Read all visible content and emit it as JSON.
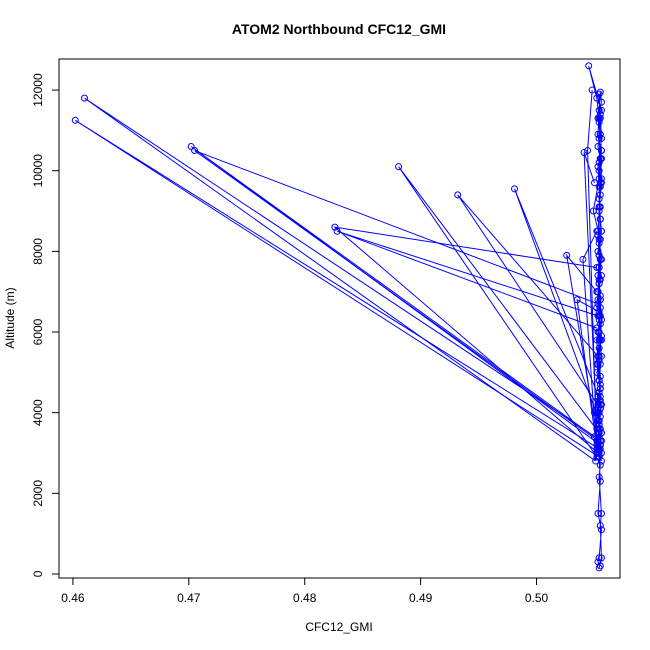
{
  "chart_data": {
    "type": "line",
    "title": "ATOM2 Northbound CFC12_GMI",
    "xlabel": "CFC12_GMI",
    "ylabel": "Altitude (m)",
    "xlim": [
      0.4588,
      0.5072
    ],
    "ylim": [
      -100,
      12770
    ],
    "xticks": [
      0.46,
      0.47,
      0.48,
      0.49,
      0.5
    ],
    "xtick_labels": [
      "0.46",
      "0.47",
      "0.48",
      "0.49",
      "0.50"
    ],
    "yticks": [
      0,
      2000,
      4000,
      6000,
      8000,
      10000,
      12000
    ],
    "ytick_labels": [
      "0",
      "2000",
      "4000",
      "6000",
      "8000",
      "10000",
      "12000"
    ],
    "grid": false,
    "legend": "none",
    "color": "#0000ff",
    "series": [
      {
        "x": [
          0.5055,
          0.5053,
          0.5054,
          0.5056,
          0.5053,
          0.5055,
          0.5054,
          0.5056,
          0.5053,
          0.5055,
          0.5052,
          0.5054,
          0.5053,
          0.5055,
          0.5054,
          0.5053,
          0.5055,
          0.5054,
          0.5053,
          0.5056,
          0.5054,
          0.5053,
          0.5055,
          0.5054,
          0.5052,
          0.5055,
          0.5053,
          0.5054,
          0.5056,
          0.5053,
          0.5055,
          0.5054,
          0.5052,
          0.5055,
          0.5053,
          0.5054,
          0.5056,
          0.5054,
          0.5055,
          0.5053,
          0.5054,
          0.5056,
          0.5055,
          0.5054,
          0.5055,
          0.5056,
          0.5054,
          0.5055,
          0.5053,
          0.5055,
          0.5054,
          0.5056,
          0.5045,
          0.5052,
          0.5054,
          0.5056,
          0.5054,
          0.5049,
          0.5055,
          0.5054,
          0.5053,
          0.5055,
          0.5052,
          0.5053,
          0.5055,
          0.505,
          0.5056,
          0.5053,
          0.5052,
          0.5055,
          0.5053,
          0.5055,
          0.5054,
          0.5053,
          0.5055,
          0.5052,
          0.5054,
          0.5054,
          0.5053,
          0.5055,
          0.5054,
          0.5053,
          0.5055,
          0.5054,
          0.5053,
          0.5056,
          0.5055,
          0.5053,
          0.5056,
          0.5055,
          0.5054,
          0.5053,
          0.5056,
          0.5055,
          0.5054,
          0.5056,
          0.5054,
          0.5053,
          0.5055,
          0.5054,
          0.5056,
          0.5054,
          0.5055,
          0.5054,
          0.5055,
          0.5054,
          0.5056,
          0.5055,
          0.5053,
          0.5054,
          0.5056,
          0.5054,
          0.5055,
          0.5054,
          0.5053,
          0.5055,
          0.5054,
          0.5054,
          0.5055,
          0.5056,
          0.5055,
          0.5054,
          0.5056,
          0.5054,
          0.5055,
          0.5054,
          0.5056,
          0.5055,
          0.5054,
          0.5055,
          0.5054,
          0.5055,
          0.5056,
          0.5054,
          0.5055,
          0.5054,
          0.5053,
          0.5055,
          0.5054,
          0.5055,
          0.5054,
          0.5056,
          0.5054,
          0.5055,
          0.5054,
          0.5053,
          0.5055,
          0.5054,
          0.5056,
          0.5055,
          0.5056,
          0.5054
        ],
        "y": [
          200,
          300,
          400,
          1100,
          1500,
          2300,
          2900,
          3000,
          3100,
          3200,
          3300,
          3400,
          3500,
          3600,
          3700,
          3800,
          3900,
          4000,
          4100,
          4200,
          4300,
          4400,
          4600,
          4800,
          5000,
          5200,
          5400,
          5600,
          5800,
          6000,
          6200,
          6400,
          6600,
          6800,
          7000,
          7200,
          7400,
          7600,
          7800,
          8000,
          8200,
          8500,
          8800,
          9100,
          9400,
          9700,
          10000,
          10300,
          10600,
          10900,
          11200,
          11500,
          12600,
          11800,
          11300,
          10500,
          9800,
          9000,
          8300,
          7600,
          7000,
          6400,
          5800,
          5200,
          4600,
          4000,
          3500,
          3300,
          3200,
          3100,
          2900,
          3300,
          3700,
          4200,
          4700,
          5200,
          5800,
          6300,
          6800,
          7300,
          7900,
          8500,
          9100,
          9600,
          10100,
          10500,
          10900,
          11300,
          11700,
          11950,
          11500,
          10900,
          10300,
          9700,
          9100,
          8500,
          7900,
          7400,
          6900,
          6400,
          5900,
          5400,
          4900,
          4500,
          4100,
          3800,
          3500,
          3300,
          3100,
          3000,
          2800,
          2900,
          3200,
          3600,
          4000,
          4400,
          4800,
          5300,
          5800,
          6300,
          6800,
          7300,
          7800,
          8300,
          8800,
          9300,
          9800,
          10300,
          10800,
          11300,
          11900,
          11400,
          10800,
          10200,
          9600,
          9000,
          8400,
          7800,
          7200,
          6600,
          6000,
          5400,
          4800,
          4200,
          3700,
          3200,
          2700,
          2400,
          1500,
          1200,
          400,
          150
        ]
      },
      {
        "x": [
          0.5052,
          0.5044,
          0.5048
        ],
        "y": [
          3000,
          10500,
          12000
        ]
      },
      {
        "x": [
          0.5056,
          0.461,
          0.5051
        ],
        "y": [
          3300,
          11800,
          2800
        ]
      },
      {
        "x": [
          0.5054,
          0.4602,
          0.5054
        ],
        "y": [
          3100,
          11250,
          2900
        ]
      },
      {
        "x": [
          0.5055,
          0.4702,
          0.505
        ],
        "y": [
          3200,
          10600,
          3400
        ]
      },
      {
        "x": [
          0.5053,
          0.4705,
          0.5053
        ],
        "y": [
          3300,
          10500,
          6700
        ]
      },
      {
        "x": [
          0.5054,
          0.4881,
          0.5052
        ],
        "y": [
          3500,
          10100,
          2900
        ]
      },
      {
        "x": [
          0.5055,
          0.4932,
          0.5053
        ],
        "y": [
          4100,
          9400,
          5400
        ]
      },
      {
        "x": [
          0.5054,
          0.4981,
          0.5055
        ],
        "y": [
          3800,
          9550,
          4300
        ]
      },
      {
        "x": [
          0.5053,
          0.4826,
          0.5052
        ],
        "y": [
          3000,
          8600,
          7600
        ]
      },
      {
        "x": [
          0.5053,
          0.4828,
          0.5052
        ],
        "y": [
          6400,
          8500,
          6100
        ]
      },
      {
        "x": [
          0.5054,
          0.5026,
          0.5052
        ],
        "y": [
          3100,
          7900,
          7000
        ]
      },
      {
        "x": [
          0.5052,
          0.5035,
          0.5054
        ],
        "y": [
          3100,
          6800,
          6500
        ]
      },
      {
        "x": [
          0.5052,
          0.504,
          0.5052
        ],
        "y": [
          3000,
          7800,
          8500
        ]
      },
      {
        "x": [
          0.5052,
          0.5041,
          0.505
        ],
        "y": [
          3600,
          10450,
          9700
        ]
      }
    ]
  }
}
